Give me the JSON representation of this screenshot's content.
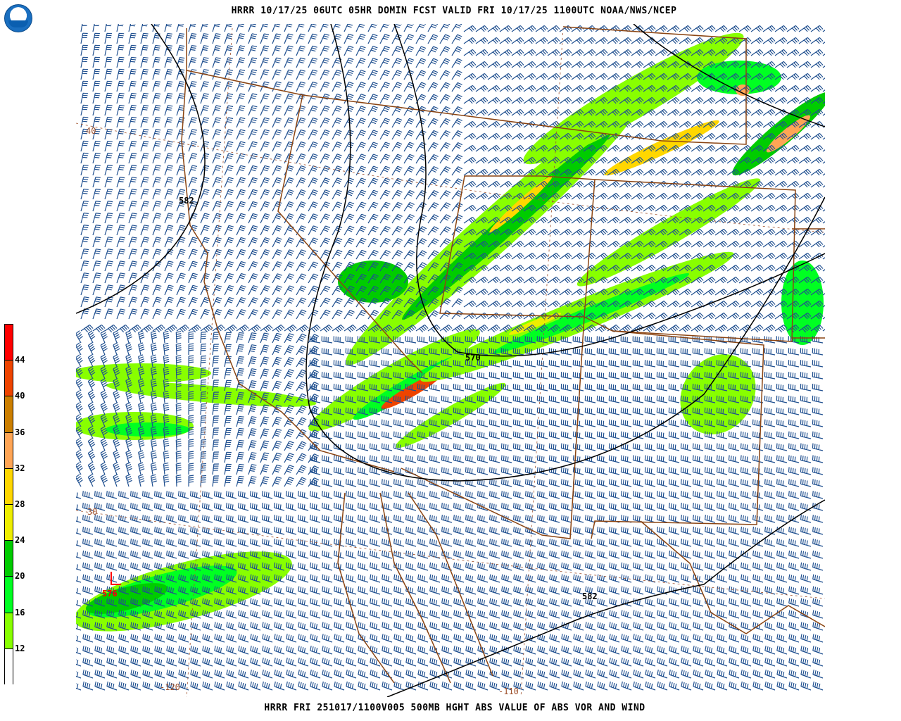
{
  "header": {
    "title": "HRRR 10/17/25 06UTC  05HR DOMIN  FCST VALID FRI 10/17/25 1100UTC  NOAA/NWS/NCEP"
  },
  "footer": {
    "caption": "HRRR FRI 251017/1100V005 500MB HGHT ABS VALUE OF ABS VOR AND WIND"
  },
  "logo": {
    "text": "NOAA"
  },
  "colorbar": {
    "labels": [
      "44",
      "40",
      "36",
      "32",
      "28",
      "24",
      "20",
      "16",
      "12"
    ],
    "colors": [
      "#ff0000",
      "#ee4400",
      "#cc7f00",
      "#ffa555",
      "#ffd700",
      "#eeee00",
      "#00cc00",
      "#00ff22",
      "#88ff00",
      "#ffffff"
    ]
  },
  "map": {
    "contour_labels": [
      "582",
      "570",
      "582",
      "576"
    ],
    "lat_labels": [
      "40",
      "30"
    ],
    "lon_labels": [
      "-120",
      "-110"
    ],
    "colors": {
      "barbs": "#1f4f8f",
      "borders": "#8b4513",
      "contours": "#000000",
      "low_marker": "#ff0000"
    }
  }
}
